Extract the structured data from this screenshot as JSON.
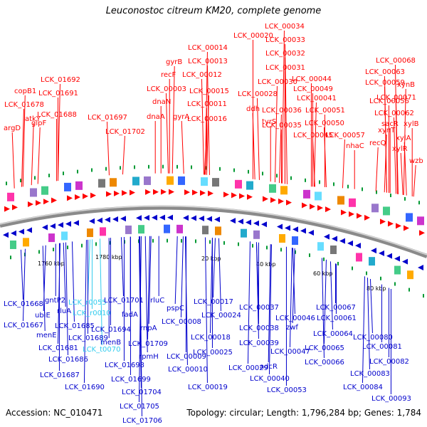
{
  "title": "Leuconostoc citreum KM20, complete genome",
  "accession": "Accession: NC_010471",
  "summary": "Topology: circular; Length: 1,796,284 bp; Genes: 1,784",
  "colors": {
    "forward": "#ff0000",
    "reverse": "#0000cc",
    "rna": "#33ccee",
    "backbone": "#888888",
    "tick": "#009933"
  },
  "scale_labels": [
    "1760 kbp",
    "1780 kbp",
    "20 kbp",
    "40 kbp",
    "60 kbp",
    "80 kbp"
  ],
  "top_labels": [
    "LCK_00034",
    "LCK_00020",
    "LCK_00033",
    "LCK_00014",
    "LCK_00032",
    "LCK_00013",
    "gyrB",
    "LCK_00031",
    "LCK_00068",
    "LCK_01692",
    "recF",
    "LCK_00012",
    "LCK_00030",
    "LCK_00044",
    "LCK_00063",
    "copB1",
    "LCK_01691",
    "LCK_00003",
    "LCK_00015",
    "LCK_00049",
    "LCK_00059",
    "xynB",
    "dnaN",
    "LCK_00028",
    "LCK_00041",
    "LCK_00056",
    "LCK_00071",
    "LCK_01678",
    "LCK_00011",
    "ddh",
    "atkY",
    "LCK_01688",
    "LCK_01697",
    "LCK_00036",
    "LCK_00051",
    "LCK_00062",
    "glpF",
    "dnaA",
    "gyrA",
    "LCK_00016",
    "tyrS",
    "argD",
    "LCK_01702",
    "LCK_00035",
    "LCK_00050",
    "xynT",
    "xylB",
    "LCK_00045",
    "LCK_00057",
    "sacR",
    "xylA",
    "recQ",
    "nhaC",
    "xylR",
    "wzb"
  ],
  "bottom_labels": [
    "LCK_01668",
    "gntP2",
    "LCK_r0055",
    "LCK_01701",
    "rluC",
    "LCK_00017",
    "LCK_00037",
    "LCK_00067",
    "ubiE",
    "rluA",
    "LCK_r0010",
    "pspC",
    "LCK_00046",
    "LCK_00061",
    "LCK_01667",
    "LCK_01685",
    "fadA",
    "LCK_00008",
    "LCK_00024",
    "LCK_00038",
    "zwf",
    "menE",
    "LCK_01694",
    "rnpA",
    "LCK_00064",
    "LCK_01689",
    "LCK_00018",
    "LCK_00080",
    "menB",
    "LCK_01709",
    "LCK_00039",
    "LCK_00081",
    "LCK_01681",
    "LCK_t0070",
    "LCK_00025",
    "LCK_00065",
    "rpmH",
    "LCK_00009",
    "LCK_00047",
    "LCK_01686",
    "LCK_01698",
    "LCK_00029",
    "LCK_00066",
    "LCK_00082",
    "adcR",
    "LCK_00010",
    "LCK_01687",
    "LCK_00040",
    "LCK_00083",
    "LCK_01699",
    "LCK_01690",
    "LCK_00019",
    "LCK_00053",
    "LCK_00084",
    "LCK_01704",
    "LCK_00093",
    "LCK_01705",
    "LCK_01706"
  ]
}
